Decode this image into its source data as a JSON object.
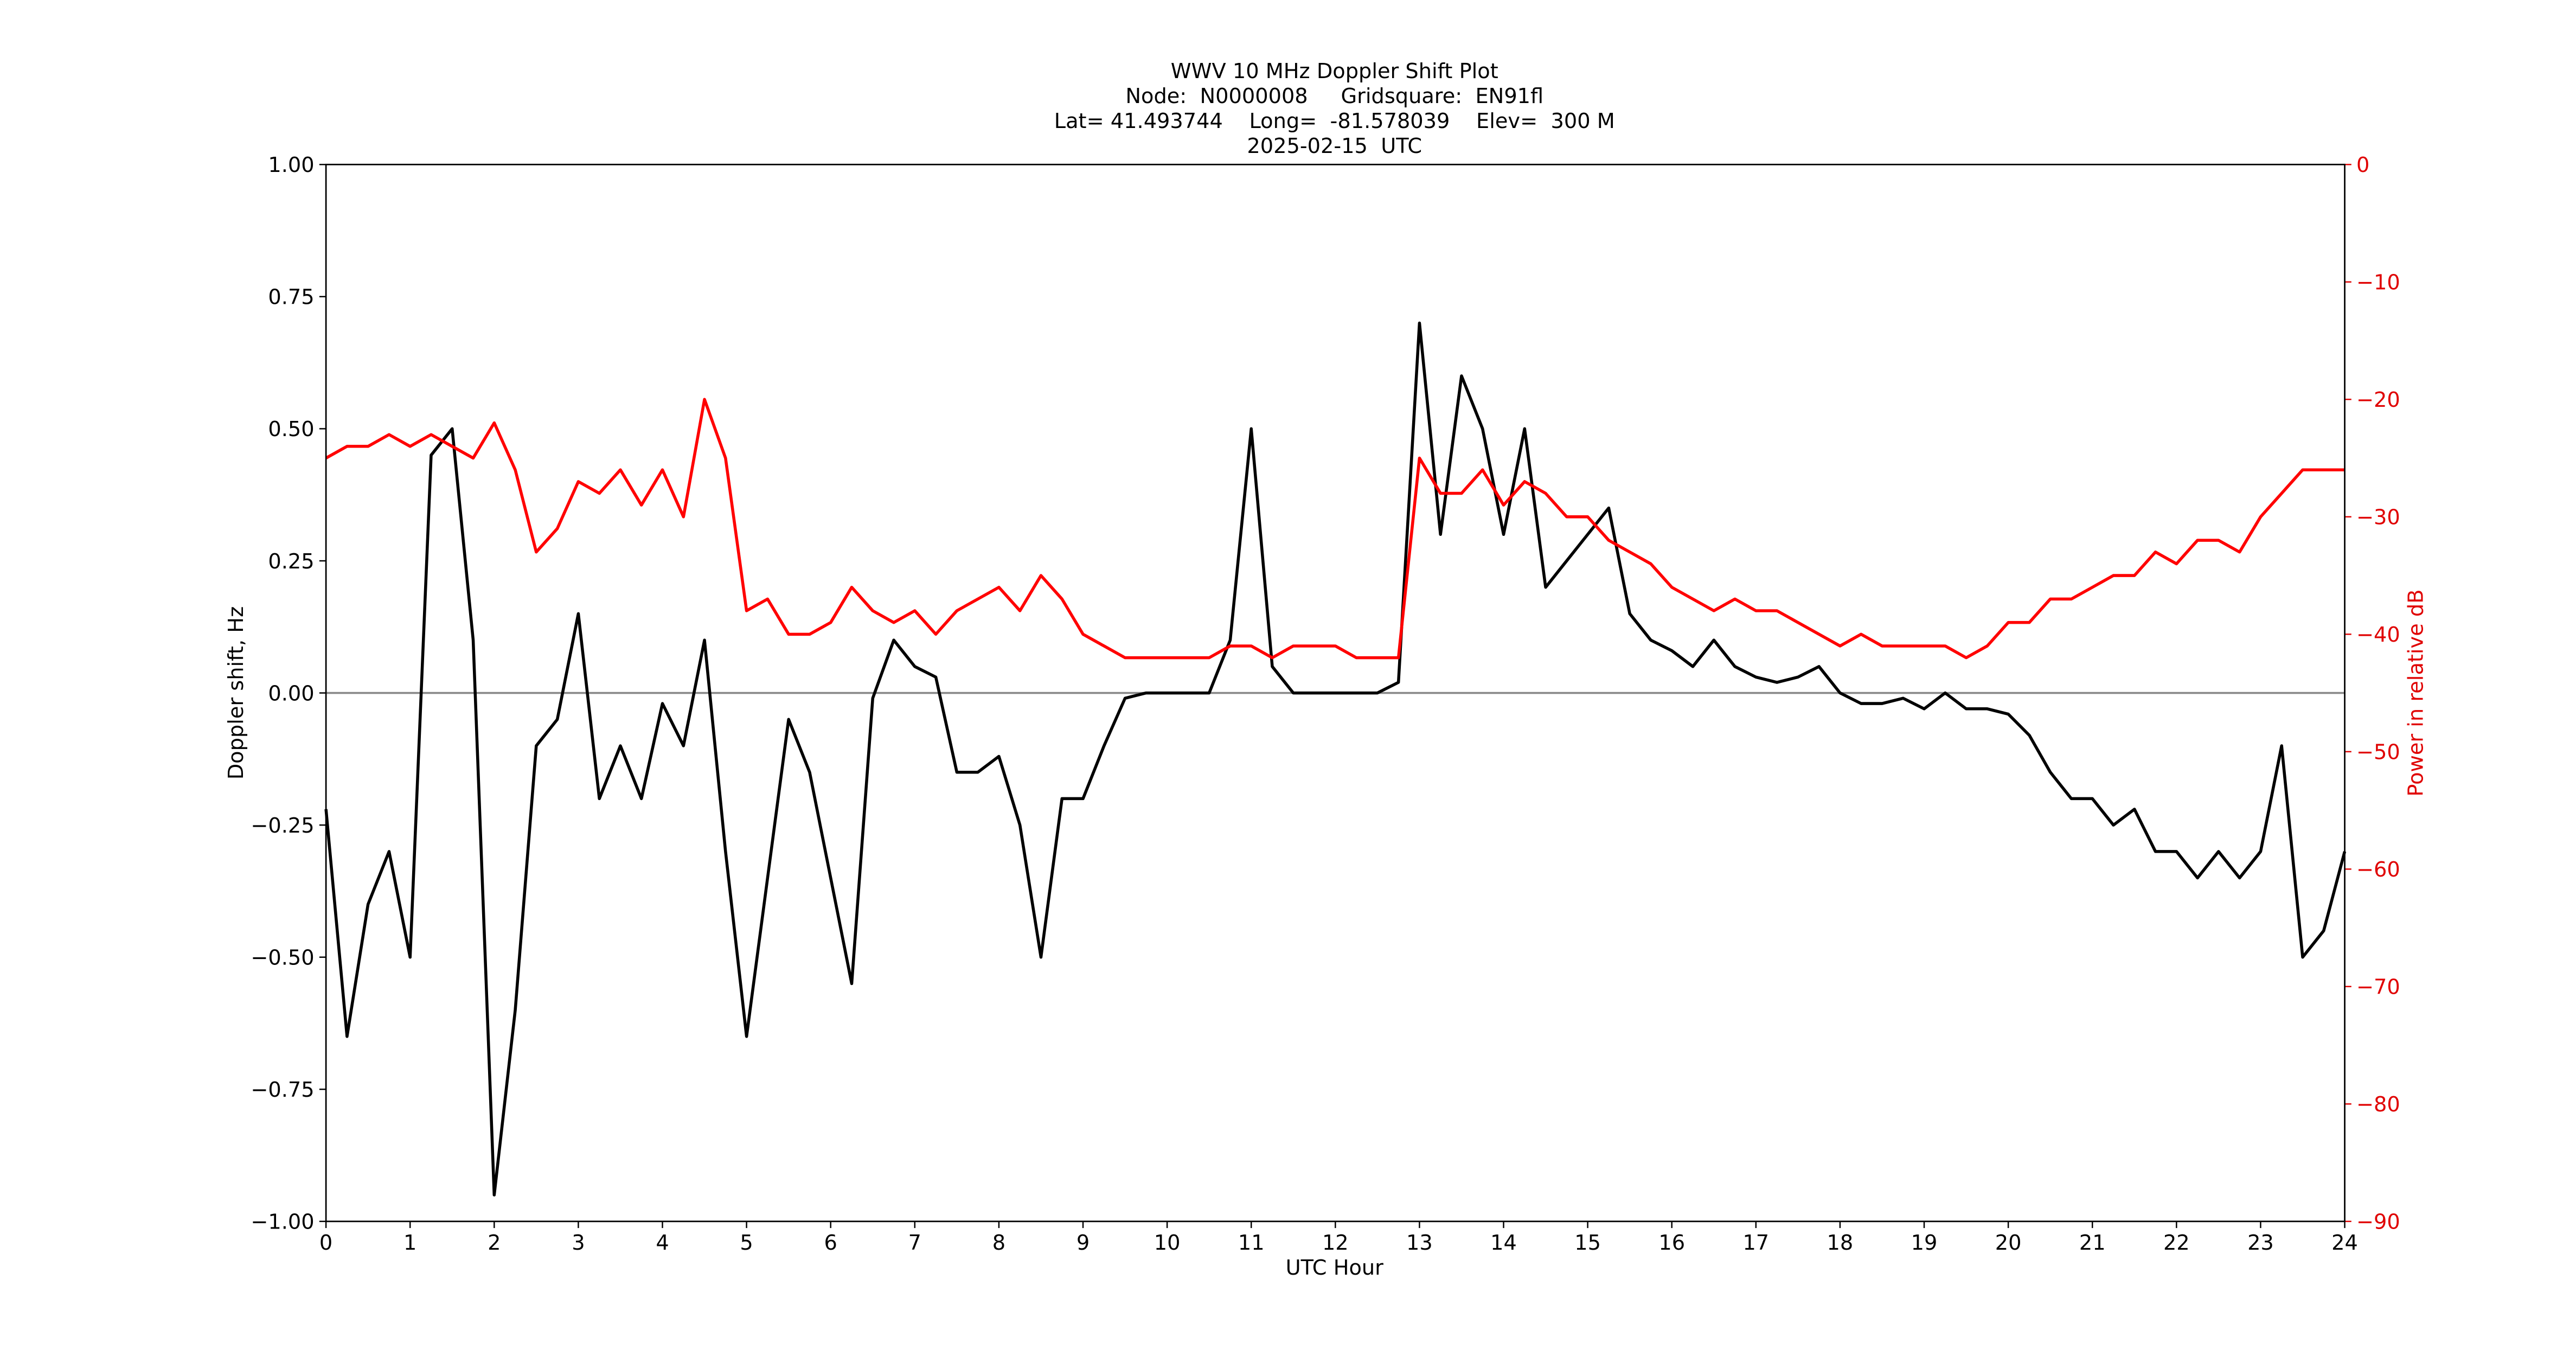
{
  "chart_data": {
    "type": "line",
    "title": "WWV 10 MHz Doppler Shift Plot",
    "subtitle": [
      "Node:  N0000008     Gridsquare:  EN91fl",
      "Lat= 41.493744    Long=  -81.578039    Elev=  300 M",
      "2025-02-15  UTC"
    ],
    "xlabel": "UTC Hour",
    "ylabel": "Doppler shift, Hz",
    "y2label": "Power in relative dB",
    "y2color": "#e00000",
    "xlim": [
      0,
      24
    ],
    "ylim": [
      -1,
      1
    ],
    "y2lim": [
      -90,
      0
    ],
    "xticks": [
      0,
      1,
      2,
      3,
      4,
      5,
      6,
      7,
      8,
      9,
      10,
      11,
      12,
      13,
      14,
      15,
      16,
      17,
      18,
      19,
      20,
      21,
      22,
      23,
      24
    ],
    "yticks": [
      {
        "value": -1,
        "label": "−1.00"
      },
      {
        "value": -0.75,
        "label": "−0.75"
      },
      {
        "value": -0.5,
        "label": "−0.50"
      },
      {
        "value": -0.25,
        "label": "−0.25"
      },
      {
        "value": 0,
        "label": "0.00"
      },
      {
        "value": 0.25,
        "label": "0.25"
      },
      {
        "value": 0.5,
        "label": "0.50"
      },
      {
        "value": 0.75,
        "label": "0.75"
      },
      {
        "value": 1,
        "label": "1.00"
      }
    ],
    "y2ticks": [
      {
        "value": -90,
        "label": "−90"
      },
      {
        "value": -80,
        "label": "−80"
      },
      {
        "value": -70,
        "label": "−70"
      },
      {
        "value": -60,
        "label": "−60"
      },
      {
        "value": -50,
        "label": "−50"
      },
      {
        "value": -40,
        "label": "−40"
      },
      {
        "value": -30,
        "label": "−30"
      },
      {
        "value": -20,
        "label": "−20"
      },
      {
        "value": -10,
        "label": "−10"
      },
      0
    ],
    "grid": false,
    "hline": {
      "value": 0,
      "color": "#888888"
    },
    "x": [
      0,
      0.25,
      0.5,
      0.75,
      1,
      1.25,
      1.5,
      1.75,
      2,
      2.25,
      2.5,
      2.75,
      3,
      3.25,
      3.5,
      3.75,
      4,
      4.25,
      4.5,
      4.75,
      5,
      5.25,
      5.5,
      5.75,
      6,
      6.25,
      6.5,
      6.75,
      7,
      7.25,
      7.5,
      7.75,
      8,
      8.25,
      8.5,
      8.75,
      9,
      9.25,
      9.5,
      9.75,
      10,
      10.25,
      10.5,
      10.75,
      11,
      11.25,
      11.5,
      11.75,
      12,
      12.25,
      12.5,
      12.75,
      13,
      13.25,
      13.5,
      13.75,
      14,
      14.25,
      14.5,
      14.75,
      15,
      15.25,
      15.5,
      15.75,
      16,
      16.25,
      16.5,
      16.75,
      17,
      17.25,
      17.5,
      17.75,
      18,
      18.25,
      18.5,
      18.75,
      19,
      19.25,
      19.5,
      19.75,
      20,
      20.25,
      20.5,
      20.75,
      21,
      21.25,
      21.5,
      21.75,
      22,
      22.25,
      22.5,
      22.75,
      23,
      23.25,
      23.5,
      23.75,
      24
    ],
    "series": [
      {
        "color": "#000000",
        "values": [
          -0.22,
          -0.65,
          -0.4,
          -0.3,
          -0.5,
          0.45,
          0.5,
          0.1,
          -0.95,
          -0.6,
          -0.1,
          -0.05,
          0.15,
          -0.2,
          -0.1,
          -0.2,
          -0.02,
          -0.1,
          0.1,
          -0.3,
          -0.65,
          -0.35,
          -0.05,
          -0.15,
          -0.35,
          -0.55,
          -0.01,
          0.1,
          0.05,
          0.03,
          -0.15,
          -0.15,
          -0.12,
          -0.25,
          -0.5,
          -0.2,
          -0.2,
          -0.1,
          -0.01,
          0,
          0,
          0,
          0,
          0.1,
          0.5,
          0.05,
          0,
          0,
          0,
          0,
          0,
          0.02,
          0.7,
          0.3,
          0.6,
          0.5,
          0.3,
          0.5,
          0.2,
          0.25,
          0.3,
          0.35,
          0.15,
          0.1,
          0.08,
          0.05,
          0.1,
          0.05,
          0.03,
          0.02,
          0.03,
          0.05,
          0,
          -0.02,
          -0.02,
          -0.01,
          -0.03,
          0,
          -0.03,
          -0.03,
          -0.04,
          -0.08,
          -0.15,
          -0.2,
          -0.2,
          -0.25,
          -0.22,
          -0.3,
          -0.3,
          -0.35,
          -0.3,
          -0.35,
          -0.3,
          -0.1,
          -0.5,
          -0.45,
          -0.3
        ]
      },
      {
        "color": "#ff0000",
        "axis": "y2",
        "values": [
          -25,
          -24,
          -24,
          -23,
          -24,
          -23,
          -24,
          -25,
          -22,
          -26,
          -33,
          -31,
          -27,
          -28,
          -26,
          -29,
          -26,
          -30,
          -20,
          -25,
          -38,
          -37,
          -40,
          -40,
          -39,
          -36,
          -38,
          -39,
          -38,
          -40,
          -38,
          -37,
          -36,
          -38,
          -35,
          -37,
          -40,
          -41,
          -42,
          -42,
          -42,
          -42,
          -42,
          -41,
          -41,
          -42,
          -41,
          -41,
          -41,
          -42,
          -42,
          -42,
          -25,
          -28,
          -28,
          -26,
          -29,
          -27,
          -28,
          -30,
          -30,
          -32,
          -33,
          -34,
          -36,
          -37,
          -38,
          -37,
          -38,
          -38,
          -39,
          -40,
          -41,
          -40,
          -41,
          -41,
          -41,
          -41,
          -42,
          -41,
          -39,
          -39,
          -37,
          -37,
          -36,
          -35,
          -35,
          -33,
          -34,
          -32,
          -32,
          -33,
          -30,
          -28,
          -26,
          -26,
          -26
        ]
      }
    ]
  }
}
